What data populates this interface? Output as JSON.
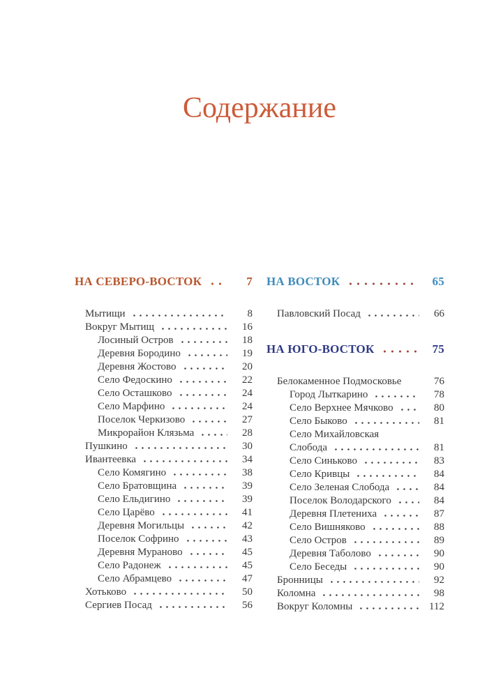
{
  "page_title": "Содержание",
  "colors": {
    "title": "#cc5b39",
    "northeast": "#b9572f",
    "east": "#3e8bbc",
    "southeast": "#2f3a86",
    "heading_dot_red": "#a04a41",
    "text": "#3a3a3a"
  },
  "columns": [
    {
      "sections": [
        {
          "name": "northeast",
          "color_key": "northeast",
          "dot_color_key": "northeast",
          "heading": {
            "label": "НА СЕВЕРО-ВОСТОК",
            "page": "7"
          },
          "entries": [
            {
              "label": "Мытищи",
              "page": "8",
              "indent": 0
            },
            {
              "label": "Вокруг Мытищ",
              "page": "16",
              "indent": 0
            },
            {
              "label": "Лосиный Остров",
              "page": "18",
              "indent": 1
            },
            {
              "label": "Деревня Бородино",
              "page": "19",
              "indent": 1
            },
            {
              "label": "Деревня Жостово",
              "page": "20",
              "indent": 1
            },
            {
              "label": "Село Федоскино",
              "page": "22",
              "indent": 1
            },
            {
              "label": "Село Осташково",
              "page": "24",
              "indent": 1
            },
            {
              "label": "Село Марфино",
              "page": "24",
              "indent": 1
            },
            {
              "label": "Поселок Черкизово",
              "page": "27",
              "indent": 1
            },
            {
              "label": "Микрорайон Клязьма",
              "page": "28",
              "indent": 1
            },
            {
              "label": "Пушкино",
              "page": "30",
              "indent": 0
            },
            {
              "label": "Ивантеевка",
              "page": "34",
              "indent": 0
            },
            {
              "label": "Село Комягино",
              "page": "38",
              "indent": 1
            },
            {
              "label": "Село Братовщина",
              "page": "39",
              "indent": 1
            },
            {
              "label": "Село Ельдигино",
              "page": "39",
              "indent": 1
            },
            {
              "label": "Село Царёво",
              "page": "41",
              "indent": 1
            },
            {
              "label": "Деревня Могильцы",
              "page": "42",
              "indent": 1
            },
            {
              "label": "Поселок Софрино",
              "page": "43",
              "indent": 1
            },
            {
              "label": "Деревня Мураново",
              "page": "45",
              "indent": 1
            },
            {
              "label": "Село Радонеж",
              "page": "45",
              "indent": 1
            },
            {
              "label": "Село Абрамцево",
              "page": "47",
              "indent": 1
            },
            {
              "label": "Хотьково",
              "page": "50",
              "indent": 0
            },
            {
              "label": "Сергиев Посад",
              "page": "56",
              "indent": 0
            }
          ]
        }
      ]
    },
    {
      "sections": [
        {
          "name": "east",
          "color_key": "east",
          "dot_color_key": "heading_dot_red",
          "heading": {
            "label": "НА ВОСТОК",
            "page": "65"
          },
          "entries": [
            {
              "label": "Павловский Посад",
              "page": "66",
              "indent": 0
            }
          ]
        },
        {
          "name": "southeast",
          "color_key": "southeast",
          "dot_color_key": "heading_dot_red",
          "heading": {
            "label": "НА ЮГО-ВОСТОК",
            "page": "75"
          },
          "entries": [
            {
              "label": "Белокаменное Подмосковье",
              "page": "76",
              "indent": 0,
              "dots": false
            },
            {
              "label": "Город Лыткарино",
              "page": "78",
              "indent": 1
            },
            {
              "label": "Село Верхнее Мячково",
              "page": "80",
              "indent": 1
            },
            {
              "label": "Село Быково",
              "page": "81",
              "indent": 1
            },
            {
              "label": "Село Михайловская",
              "page": "",
              "indent": 1,
              "dots": false
            },
            {
              "label": "Слобода",
              "page": "81",
              "indent": 1
            },
            {
              "label": "Село Синьково",
              "page": "83",
              "indent": 1
            },
            {
              "label": "Село Кривцы",
              "page": "84",
              "indent": 1
            },
            {
              "label": "Село Зеленая Слобода",
              "page": "84",
              "indent": 1
            },
            {
              "label": "Поселок Володарского",
              "page": "84",
              "indent": 1
            },
            {
              "label": "Деревня Плетениха",
              "page": "87",
              "indent": 1
            },
            {
              "label": "Село Вишняково",
              "page": "88",
              "indent": 1
            },
            {
              "label": "Село Остров",
              "page": "89",
              "indent": 1
            },
            {
              "label": "Деревня Таболово",
              "page": "90",
              "indent": 1
            },
            {
              "label": "Село Беседы",
              "page": "90",
              "indent": 1
            },
            {
              "label": "Бронницы",
              "page": "92",
              "indent": 0
            },
            {
              "label": "Коломна",
              "page": "98",
              "indent": 0
            },
            {
              "label": "Вокруг Коломны",
              "page": "112",
              "indent": 0
            }
          ]
        }
      ]
    }
  ]
}
